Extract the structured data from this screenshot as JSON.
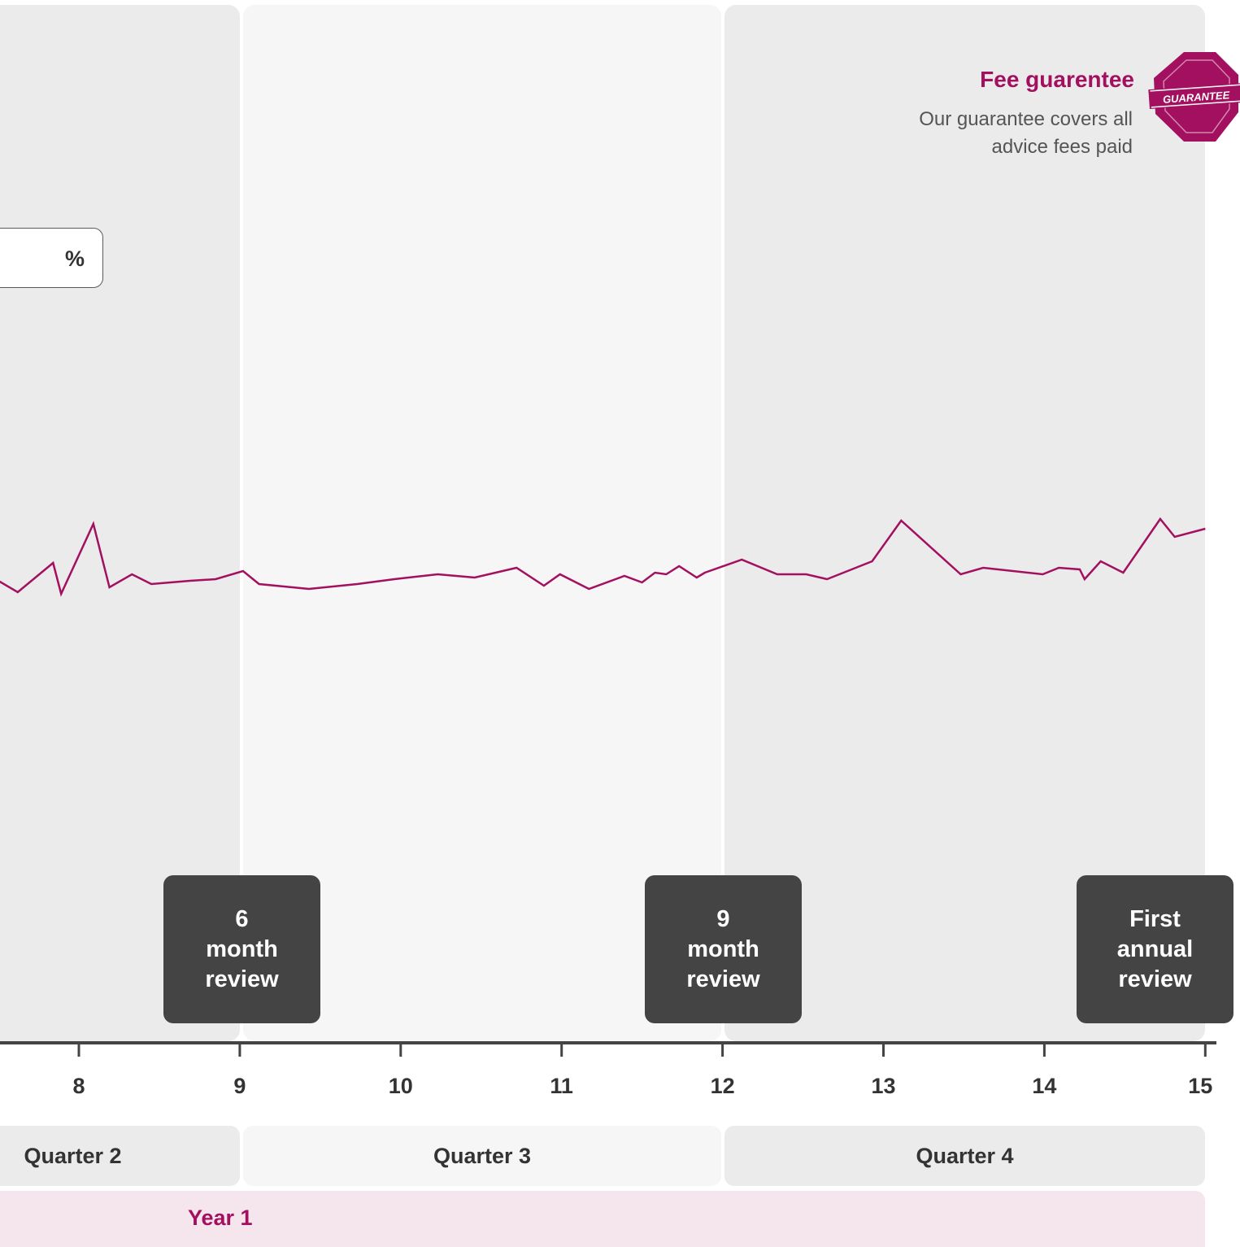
{
  "fee_guarantee": {
    "title": "Fee guarentee",
    "text": "Our guarantee covers all advice fees paid",
    "badge_label": "GUARANTEE",
    "badge_color": "#a3105f"
  },
  "percent_box": {
    "unit": "%"
  },
  "reviews": [
    {
      "lines": [
        "6",
        "month",
        "review"
      ],
      "month": 9
    },
    {
      "lines": [
        "9",
        "month",
        "review"
      ],
      "month": 12
    },
    {
      "lines": [
        "First",
        "annual",
        "review"
      ],
      "month": 15
    }
  ],
  "quarters": [
    {
      "label": "Quarter 2",
      "start": 6,
      "end": 9
    },
    {
      "label": "Quarter 3",
      "start": 9,
      "end": 12
    },
    {
      "label": "Quarter 4",
      "start": 12,
      "end": 15
    }
  ],
  "year": {
    "label": "Year 1"
  },
  "chart_data": {
    "type": "line",
    "title": "",
    "xlabel": "",
    "ylabel": "",
    "xlim": [
      7.5,
      15
    ],
    "x_ticks": [
      8,
      9,
      10,
      11,
      12,
      13,
      14,
      15
    ],
    "x_tick_labels": [
      "8",
      "9",
      "10",
      "11",
      "12",
      "13",
      "14",
      "15"
    ],
    "line_color": "#a3105f",
    "grid": false,
    "series": [
      {
        "x": [
          7.5,
          7.62,
          7.84,
          7.89,
          8.09,
          8.19,
          8.33,
          8.45,
          8.69,
          8.85,
          9.02,
          9.12,
          9.43,
          9.73,
          9.96,
          10.23,
          10.46,
          10.72,
          10.89,
          10.99,
          11.17,
          11.39,
          11.5,
          11.58,
          11.65,
          11.73,
          11.84,
          11.89,
          12.12,
          12.34,
          12.52,
          12.65,
          12.93,
          13.11,
          13.48,
          13.62,
          13.99,
          14.09,
          14.22,
          14.25,
          14.35,
          14.49,
          14.72,
          14.81,
          15.0
        ],
        "y": [
          5.04,
          4.97,
          5.15,
          4.96,
          5.39,
          5.0,
          5.08,
          5.02,
          5.04,
          5.05,
          5.1,
          5.02,
          4.99,
          5.02,
          5.05,
          5.08,
          5.06,
          5.12,
          5.01,
          5.08,
          4.99,
          5.07,
          5.03,
          5.09,
          5.08,
          5.13,
          5.06,
          5.09,
          5.17,
          5.08,
          5.08,
          5.05,
          5.16,
          5.41,
          5.08,
          5.12,
          5.08,
          5.12,
          5.11,
          5.05,
          5.16,
          5.09,
          5.42,
          5.31,
          5.36
        ]
      }
    ]
  }
}
